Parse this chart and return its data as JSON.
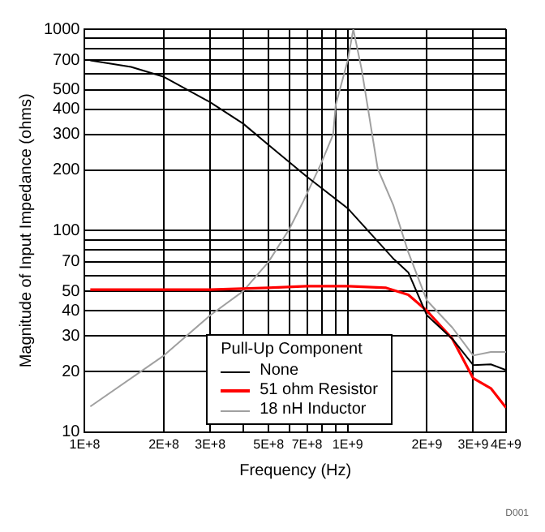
{
  "chart_data": {
    "type": "line",
    "xlabel": "Frequency (Hz)",
    "ylabel": "Magnitude of Input Impedance (ohms)",
    "legend_title": "Pull-Up Component",
    "log": "xy",
    "grid": true,
    "legend": "bottom",
    "marker": "none",
    "xlim": [
      100000000,
      4000000000
    ],
    "ylim": [
      10,
      1000
    ],
    "xticks": [
      {
        "value": 100000000,
        "label": "1E+8"
      },
      {
        "value": 200000000,
        "label": "2E+8"
      },
      {
        "value": 300000000,
        "label": "3E+8"
      },
      {
        "value": 400000000,
        "label": null
      },
      {
        "value": 500000000,
        "label": "5E+8"
      },
      {
        "value": 600000000,
        "label": null
      },
      {
        "value": 700000000,
        "label": "7E+8"
      },
      {
        "value": 800000000,
        "label": null
      },
      {
        "value": 900000000,
        "label": null
      },
      {
        "value": 1000000000,
        "label": "1E+9"
      },
      {
        "value": 2000000000,
        "label": "2E+9"
      },
      {
        "value": 3000000000,
        "label": "3E+9"
      },
      {
        "value": 4000000000,
        "label": "4E+9"
      }
    ],
    "yticks": [
      10,
      20,
      30,
      40,
      50,
      {
        "value": 60,
        "label": null
      },
      70,
      {
        "value": 80,
        "label": null
      },
      {
        "value": 90,
        "label": null
      },
      100,
      200,
      300,
      400,
      500,
      {
        "value": 600,
        "label": null
      },
      700,
      {
        "value": 800,
        "label": null
      },
      {
        "value": 900,
        "label": null
      },
      1000
    ],
    "annotations": [
      "D001"
    ],
    "series": [
      {
        "name": "None",
        "color": "#000000",
        "x": [
          105000000,
          150000000,
          200000000,
          300000000,
          400000000,
          500000000,
          700000000,
          1000000000,
          1500000000,
          1700000000,
          2000000000,
          2500000000,
          3000000000,
          3500000000,
          4000000000
        ],
        "values": [
          700,
          650,
          580,
          434,
          340,
          266,
          185,
          129,
          72,
          62,
          38,
          29,
          21.5,
          21.7,
          20.3
        ]
      },
      {
        "name": "51 ohm Resistor",
        "color": "#ff0000",
        "x": [
          105000000,
          200000000,
          300000000,
          500000000,
          700000000,
          1000000000,
          1400000000,
          1700000000,
          2000000000,
          2500000000,
          3000000000,
          3500000000,
          4000000000
        ],
        "values": [
          51,
          51,
          51,
          52,
          53,
          53,
          52,
          48,
          40,
          29,
          18.5,
          16.5,
          13.2
        ]
      },
      {
        "name": "18 nH Inductor",
        "color": "#a0a0a0",
        "x": [
          105000000,
          200000000,
          300000000,
          400000000,
          500000000,
          600000000,
          680000000,
          790000000,
          880000000,
          900000000,
          1000000000,
          1050000000,
          1130000000,
          1300000000,
          1490000000,
          1700000000,
          2000000000,
          2500000000,
          3000000000,
          3500000000,
          4000000000
        ],
        "values": [
          13.4,
          24,
          38,
          50,
          70,
          102,
          141,
          214,
          300,
          420,
          700,
          1000,
          630,
          203,
          134,
          78,
          45,
          33,
          24,
          25,
          25
        ]
      }
    ]
  }
}
